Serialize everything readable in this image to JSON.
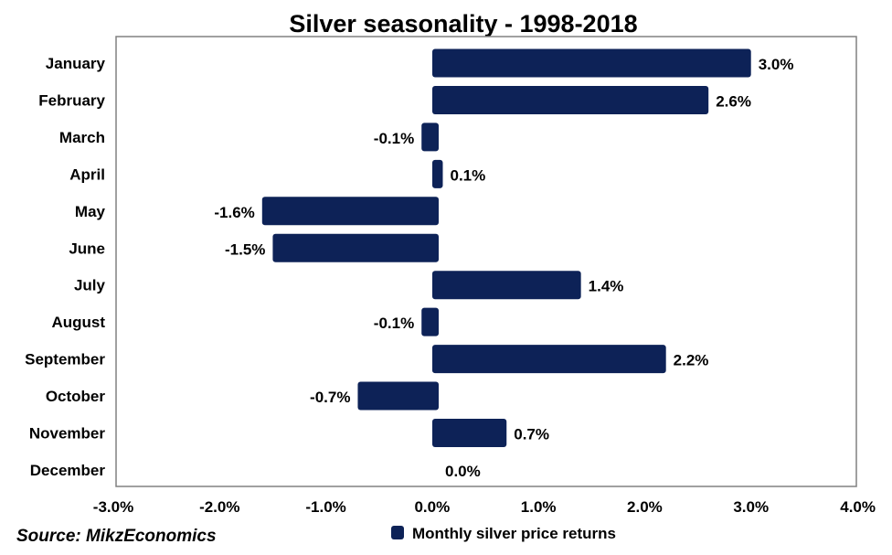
{
  "chart_data": {
    "type": "bar",
    "orientation": "horizontal",
    "title": "Silver seasonality - 1998-2018",
    "categories": [
      "January",
      "February",
      "March",
      "April",
      "May",
      "June",
      "July",
      "August",
      "September",
      "October",
      "November",
      "December"
    ],
    "series": [
      {
        "name": "Monthly silver price returns",
        "values": [
          3.0,
          2.6,
          -0.1,
          0.1,
          -1.6,
          -1.5,
          1.4,
          -0.1,
          2.2,
          -0.7,
          0.7,
          0.0
        ],
        "labels": [
          "3.0%",
          "2.6%",
          "-0.1%",
          "0.1%",
          "-1.6%",
          "-1.5%",
          "1.4%",
          "-0.1%",
          "2.2%",
          "-0.7%",
          "0.7%",
          "0.0%"
        ],
        "color": "#0d2257"
      }
    ],
    "xlim": [
      -3.0,
      4.0
    ],
    "xticks": [
      -3.0,
      -2.0,
      -1.0,
      0.0,
      1.0,
      2.0,
      3.0,
      4.0
    ],
    "xtick_labels": [
      "-3.0%",
      "-2.0%",
      "-1.0%",
      "0.0%",
      "1.0%",
      "2.0%",
      "3.0%",
      "4.0%"
    ],
    "grid": false,
    "legend_position": "bottom",
    "source": "Source: MikzEconomics"
  }
}
